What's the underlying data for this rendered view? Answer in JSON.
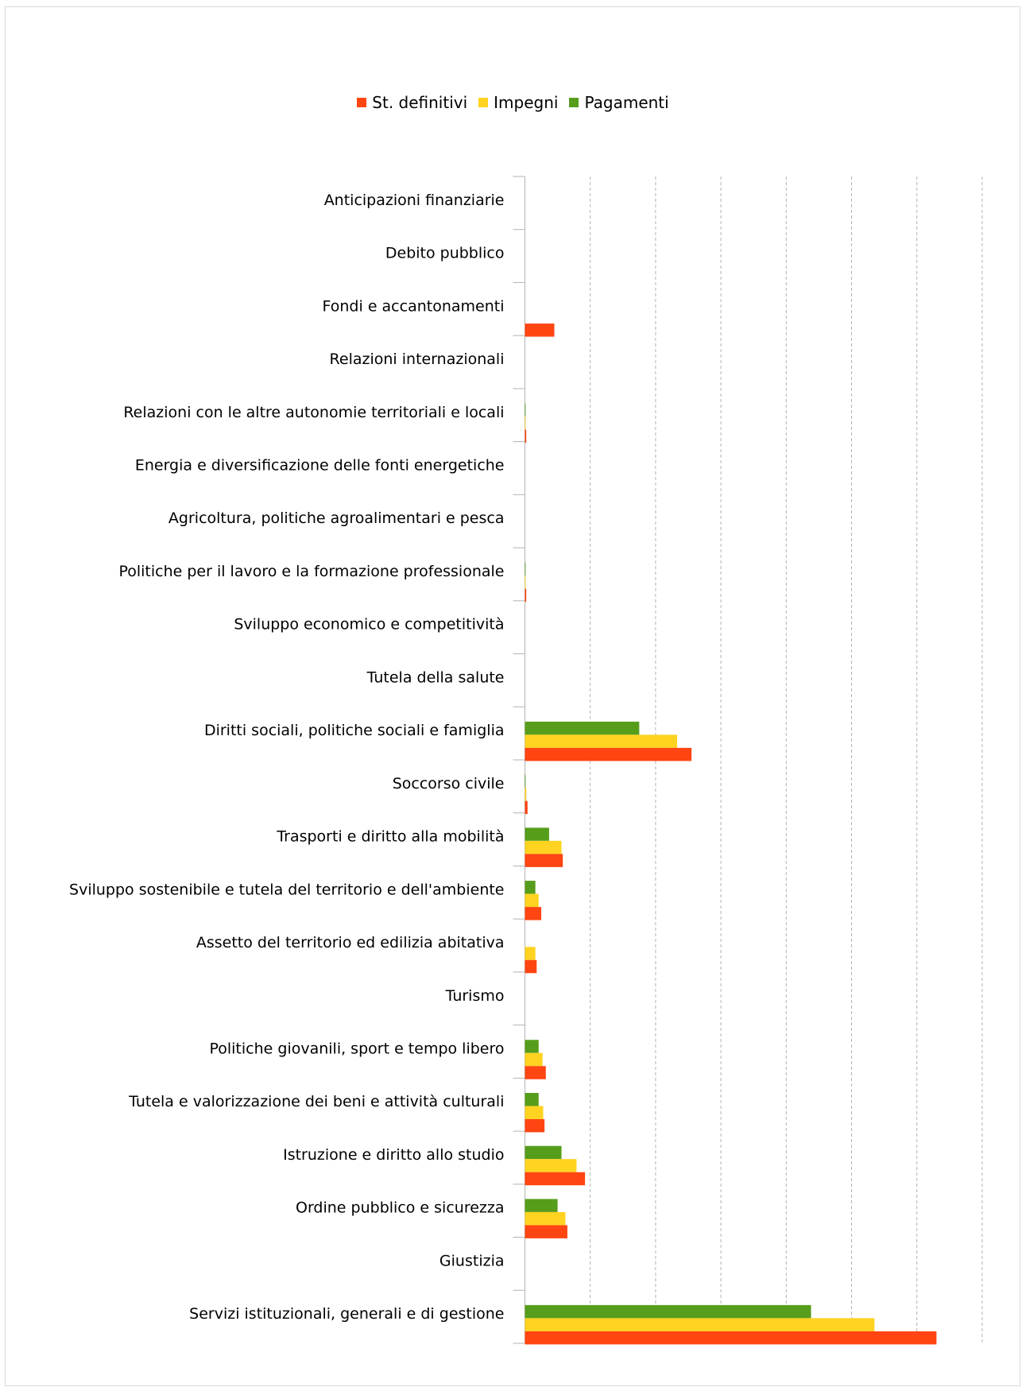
{
  "chart_data": {
    "type": "bar",
    "orientation": "horizontal",
    "legend_position": "top",
    "grid": "vertical-dashed",
    "series": [
      {
        "name": "St. definitivi",
        "color": "#FF4512",
        "values": [
          0,
          0,
          0.45,
          0,
          0.02,
          0,
          0,
          0.02,
          0,
          0,
          2.55,
          0.04,
          0.58,
          0.25,
          0.18,
          0,
          0.32,
          0.3,
          0.92,
          0.65,
          0,
          6.3
        ]
      },
      {
        "name": "Impegni",
        "color": "#FFD320",
        "values": [
          0,
          0,
          0,
          0,
          0.01,
          0,
          0,
          0.01,
          0,
          0,
          2.33,
          0.02,
          0.56,
          0.21,
          0.16,
          0,
          0.27,
          0.28,
          0.79,
          0.62,
          0,
          5.35
        ]
      },
      {
        "name": "Pagamenti",
        "color": "#579D1C",
        "values": [
          0,
          0,
          0,
          0,
          0.01,
          0,
          0,
          0.01,
          0,
          0,
          1.75,
          0.01,
          0.37,
          0.16,
          0,
          0,
          0.21,
          0.21,
          0.56,
          0.5,
          0,
          4.38
        ]
      }
    ],
    "categories": [
      "Anticipazioni finanziarie",
      "Debito pubblico",
      "Fondi e accantonamenti",
      "Relazioni internazionali",
      "Relazioni con le altre autonomie territoriali e locali",
      "Energia e diversificazione delle fonti energetiche",
      "Agricoltura, politiche agroalimentari e pesca",
      "Politiche per il lavoro e la formazione professionale",
      "Sviluppo economico e competitività",
      "Tutela della salute",
      "Diritti sociali, politiche sociali e famiglia",
      "Soccorso civile",
      "Trasporti e diritto alla mobilità",
      "Sviluppo sostenibile e tutela del territorio e dell'ambiente",
      "Assetto del territorio ed edilizia abitativa",
      "Turismo",
      "Politiche giovanili, sport e tempo libero",
      "Tutela e valorizzazione dei beni e attività culturali",
      "Istruzione e diritto allo studio",
      "Ordine pubblico e sicurezza",
      "Giustizia",
      "Servizi istituzionali, generali e di gestione"
    ],
    "xlim": [
      0,
      7
    ]
  }
}
